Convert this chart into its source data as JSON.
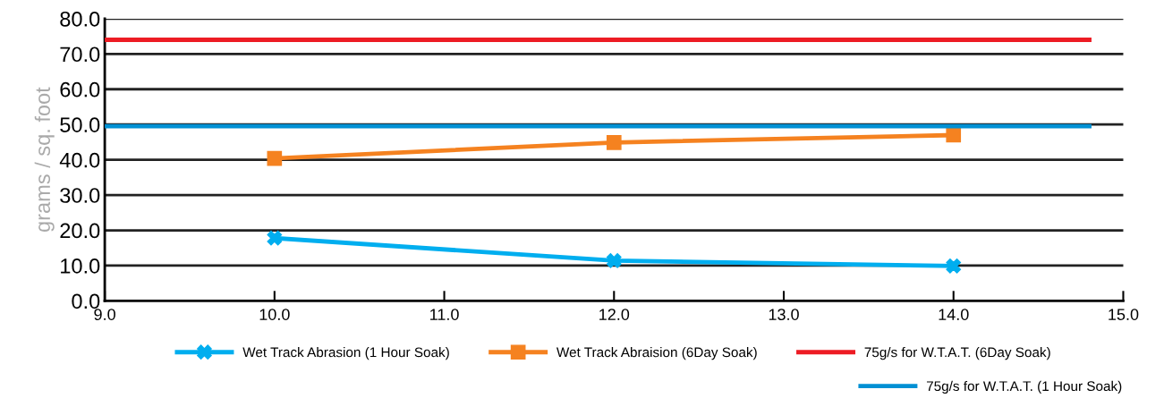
{
  "chart_data": {
    "type": "line",
    "ylabel": "grams / sq. foot",
    "xlim": [
      9,
      15
    ],
    "ylim": [
      0,
      80
    ],
    "xticks": [
      {
        "value": 9,
        "label": "9.0"
      },
      {
        "value": 10,
        "label": "10.0"
      },
      {
        "value": 11,
        "label": "11.0"
      },
      {
        "value": 12,
        "label": "12.0"
      },
      {
        "value": 13,
        "label": "13.0"
      },
      {
        "value": 14,
        "label": "14.0"
      },
      {
        "value": 15,
        "label": "15.0"
      }
    ],
    "yticks": [
      {
        "value": 0,
        "label": "0.0"
      },
      {
        "value": 10,
        "label": "10.0"
      },
      {
        "value": 20,
        "label": "20.0"
      },
      {
        "value": 30,
        "label": "30.0"
      },
      {
        "value": 40,
        "label": "40.0"
      },
      {
        "value": 50,
        "label": "50.0"
      },
      {
        "value": 60,
        "label": "60.0"
      },
      {
        "value": 70,
        "label": "70.0"
      },
      {
        "value": 80,
        "label": "80.0"
      }
    ],
    "grid": "y",
    "legend": "bottom",
    "series": [
      {
        "name": "Wet Track Abrasion (1 Hour Soak)",
        "color": "#00aeef",
        "marker": "cross",
        "x": [
          10,
          12,
          14
        ],
        "values": [
          17.8,
          11.4,
          9.9
        ]
      },
      {
        "name": "Wet Track Abraision (6Day Soak)",
        "color": "#f58220",
        "marker": "square",
        "x": [
          10,
          12,
          14
        ],
        "values": [
          40.4,
          44.9,
          47.0
        ]
      },
      {
        "name": "75g/s for W.T.A.T. (6Day Soak)",
        "color": "#ed1c24",
        "marker": "none",
        "x": [
          9,
          14.8
        ],
        "values": [
          74,
          74
        ]
      },
      {
        "name": "75g/s for W.T.A.T. (1 Hour Soak)",
        "color": "#0090d4",
        "marker": "none",
        "x": [
          9,
          14.8
        ],
        "values": [
          49.5,
          49.5
        ]
      }
    ]
  }
}
